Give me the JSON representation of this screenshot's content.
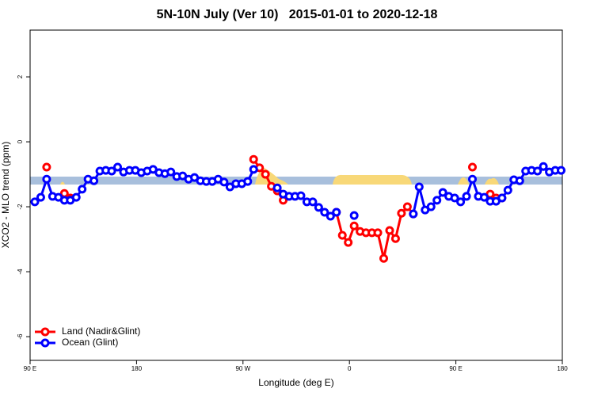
{
  "chart_data": {
    "type": "line",
    "title": "5N-10N July (Ver 10)   2015-01-01 to 2020-12-18",
    "x_label": "Longitude (deg E)",
    "y_label": "XCO2 - MLO trend (ppm)",
    "xlim": [
      90,
      540
    ],
    "ylim": [
      -6.73,
      3.44
    ],
    "xticks": [
      {
        "value": 90,
        "label": "90 E"
      },
      180,
      {
        "value": 270,
        "label": "90 W"
      },
      {
        "value": 360,
        "label": "0"
      },
      {
        "value": 450,
        "label": "90 E"
      },
      {
        "value": 540,
        "label": "180"
      }
    ],
    "yticks": [
      -6,
      -4,
      -2,
      0,
      2
    ],
    "legend": "bottomleft",
    "x": [
      94,
      99,
      104,
      109,
      114,
      119,
      124,
      129,
      134,
      139,
      144,
      149,
      154,
      159,
      164,
      169,
      174,
      179,
      184,
      189,
      194,
      199,
      204,
      209,
      214,
      219,
      224,
      229,
      234,
      239,
      244,
      249,
      254,
      259,
      264,
      269,
      274,
      279,
      284,
      289,
      294,
      299,
      304,
      309,
      314,
      319,
      324,
      329,
      334,
      339,
      344,
      349,
      354,
      359,
      364,
      369,
      374,
      379,
      384,
      389,
      394,
      399,
      404,
      409,
      414,
      419,
      424,
      429,
      434,
      439,
      444,
      449,
      454,
      459,
      464,
      469,
      474,
      479,
      484,
      489,
      494,
      499,
      504,
      509,
      514,
      519,
      524,
      529,
      534,
      539
    ],
    "series": [
      {
        "name": "Land (Nadir&Glint)",
        "color": "#ff0000",
        "values": [
          null,
          null,
          -0.78,
          null,
          null,
          -1.59,
          -1.73,
          null,
          null,
          null,
          null,
          null,
          null,
          null,
          null,
          null,
          null,
          null,
          null,
          null,
          null,
          null,
          null,
          null,
          null,
          null,
          null,
          null,
          null,
          null,
          null,
          null,
          null,
          null,
          null,
          null,
          null,
          -0.54,
          -0.8,
          -1.0,
          -1.37,
          -1.51,
          -1.8,
          null,
          null,
          null,
          null,
          null,
          null,
          null,
          null,
          -2.17,
          -2.88,
          -3.1,
          -2.59,
          -2.76,
          -2.8,
          -2.8,
          -2.8,
          -3.59,
          -2.73,
          -2.98,
          -2.2,
          -2.0,
          -2.22,
          null,
          null,
          null,
          null,
          null,
          null,
          null,
          null,
          null,
          -0.78,
          null,
          null,
          -1.61,
          -1.73,
          -1.73,
          null,
          null,
          null,
          null,
          null,
          null,
          null,
          null,
          null,
          null
        ]
      },
      {
        "name": "Ocean (Glint)",
        "color": "#0000ff",
        "values": [
          -1.85,
          -1.71,
          -1.15,
          -1.68,
          -1.71,
          -1.8,
          -1.8,
          -1.71,
          -1.46,
          -1.15,
          -1.2,
          -0.9,
          -0.88,
          -0.9,
          -0.78,
          -0.93,
          -0.88,
          -0.88,
          -0.95,
          -0.9,
          -0.85,
          -0.95,
          -0.98,
          -0.93,
          -1.07,
          -1.05,
          -1.15,
          -1.1,
          -1.2,
          -1.22,
          -1.22,
          -1.15,
          -1.24,
          -1.39,
          -1.29,
          -1.29,
          -1.22,
          -0.85,
          null,
          null,
          null,
          -1.42,
          -1.61,
          -1.68,
          -1.68,
          -1.66,
          -1.85,
          -1.85,
          -2.02,
          -2.17,
          -2.29,
          -2.17,
          null,
          null,
          -2.27,
          null,
          null,
          null,
          null,
          null,
          null,
          null,
          null,
          null,
          -2.22,
          -1.39,
          -2.1,
          -2.0,
          -1.8,
          -1.56,
          -1.68,
          -1.73,
          -1.85,
          -1.68,
          -1.15,
          -1.68,
          -1.71,
          -1.83,
          -1.83,
          -1.73,
          -1.49,
          -1.17,
          -1.2,
          -0.9,
          -0.88,
          -0.9,
          -0.76,
          -0.93,
          -0.88,
          -0.88
        ]
      }
    ]
  }
}
